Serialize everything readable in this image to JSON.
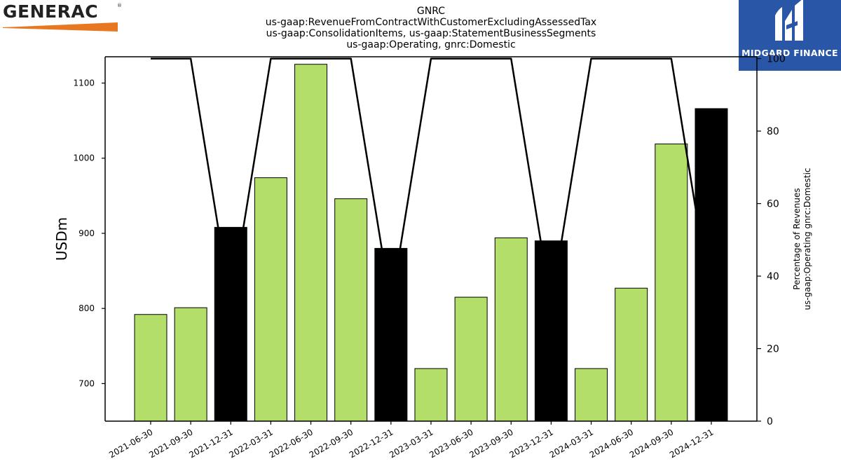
{
  "header": {
    "title_lines": [
      "GNRC",
      "us-gaap:RevenueFromContractWithCustomerExcludingAssessedTax",
      "us-gaap:ConsolidationItems, us-gaap:StatementBusinessSegments",
      "us-gaap:Operating, gnrc:Domestic"
    ]
  },
  "logos": {
    "left_brand": "GENERAC",
    "left_reg_mark": "®",
    "right_brand": "MIDGARD FINANCE",
    "left_swoosh_color": "#e87722",
    "right_bg_color": "#2a56a8"
  },
  "chart_data": {
    "type": "bar",
    "categories": [
      "2021-06-30",
      "2021-09-30",
      "2021-12-31",
      "2022-03-31",
      "2022-06-30",
      "2022-09-30",
      "2022-12-31",
      "2023-03-31",
      "2023-06-30",
      "2023-09-30",
      "2023-12-31",
      "2024-03-31",
      "2024-06-30",
      "2024-09-30",
      "2024-12-31"
    ],
    "values": [
      792,
      801,
      908,
      974,
      1125,
      946,
      880,
      720,
      815,
      894,
      890,
      720,
      827,
      1019,
      1066
    ],
    "bar_colors": [
      "#b3de69",
      "#b3de69",
      "#000000",
      "#b3de69",
      "#b3de69",
      "#b3de69",
      "#000000",
      "#b3de69",
      "#b3de69",
      "#b3de69",
      "#000000",
      "#b3de69",
      "#b3de69",
      "#b3de69",
      "#000000"
    ],
    "ylabel": "USDm",
    "ylim": [
      650,
      1135
    ],
    "yticks": [
      700,
      800,
      900,
      1000,
      1100
    ],
    "secondary_series": {
      "type": "line",
      "values": [
        100,
        100,
        32,
        100,
        100,
        100,
        32,
        100,
        100,
        100,
        32,
        100,
        100,
        100,
        32
      ],
      "color": "#000000"
    },
    "y2label_lines": [
      "Percentage of Revenues",
      "us-gaap:Operating gnrc:Domestic"
    ],
    "y2lim": [
      0,
      100.5
    ],
    "y2ticks": [
      0,
      20,
      40,
      60,
      80,
      100
    ],
    "grid": false
  }
}
